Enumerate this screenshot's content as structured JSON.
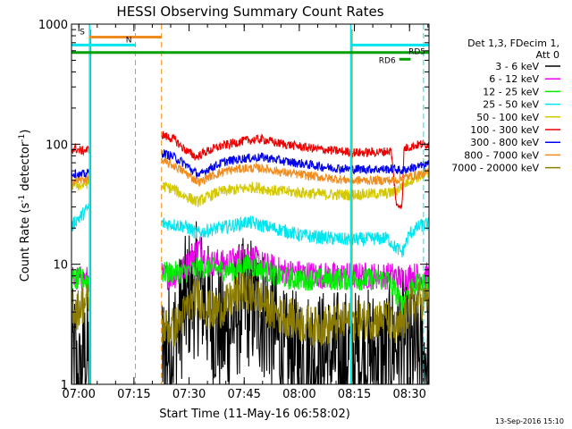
{
  "chart_data": {
    "type": "line",
    "title": "HESSI Observing Summary Count Rates",
    "xlabel": "Start Time (11-May-16 06:58:02)",
    "ylabel": "Count Rate (s⁻¹ detector⁻¹)",
    "ylabel_parts": {
      "base": "Count Rate (s",
      "sup1": "-1",
      "mid": " detector",
      "sup2": "-1",
      "end": ")"
    },
    "x_unit": "minutes since 06:58:02",
    "xlim": [
      0,
      97.3
    ],
    "ylim": [
      1,
      1000
    ],
    "y_scale": "log",
    "grid": false,
    "legend_placement": "right",
    "x_ticks": [
      {
        "label": "07:00",
        "value": 2.0
      },
      {
        "label": "07:15",
        "value": 17.0
      },
      {
        "label": "07:30",
        "value": 32.0
      },
      {
        "label": "07:45",
        "value": 47.0
      },
      {
        "label": "08:00",
        "value": 62.0
      },
      {
        "label": "08:15",
        "value": 77.0
      },
      {
        "label": "08:30",
        "value": 92.0
      }
    ],
    "y_ticks": [
      {
        "label": "1",
        "value": 1
      },
      {
        "label": "10",
        "value": 10
      },
      {
        "label": "100",
        "value": 100
      },
      {
        "label": "1000",
        "value": 1000
      }
    ],
    "legend_header": [
      "Det 1,3, FDecim 1,",
      "Att 0"
    ],
    "timestamp": "13-Sep-2016 15:10",
    "vertical_lines": [
      {
        "x": 17.4,
        "color": "#00e5ee",
        "style": "dashed"
      },
      {
        "x": 24.5,
        "color": "#f08c1e",
        "style": "dashed"
      },
      {
        "x": 95.8,
        "color": "#00e5ee",
        "style": "dashed"
      }
    ],
    "flag_bars": [
      {
        "label": "S",
        "x_start": 4.9,
        "x_end": 24.5,
        "y": 780,
        "color": "#f08c1e",
        "line": "solid",
        "label_pos": "start-above"
      },
      {
        "label": "N",
        "x_start": 0.0,
        "x_end": 17.4,
        "y": 670,
        "color": "#00e5ee",
        "line": "solid",
        "label_pos": "end-above"
      },
      {
        "label": "",
        "x_start": 0.0,
        "x_end": 97.3,
        "y": 580,
        "color": "#00a000",
        "line": "solid",
        "label_pos": "none"
      },
      {
        "label": "RD5",
        "x_start": 76.0,
        "x_end": 97.3,
        "y": 670,
        "color": "#00e5ee",
        "line": "solid",
        "label_pos": "end-below"
      },
      {
        "label": "RD6",
        "x_start": 89.2,
        "x_end": 92.3,
        "y": 510,
        "color": "#00a000",
        "line": "solid",
        "label_pos": "start-left"
      }
    ],
    "saa_intervals": [
      {
        "x_start": 4.9,
        "x_end": 24.5
      },
      {
        "x_start": 76.0,
        "x_end": 76.3
      }
    ],
    "series": [
      {
        "name": "3 - 6 keV",
        "color": "#000000",
        "noise": 0.6,
        "points": [
          [
            0,
            1.7
          ],
          [
            1,
            1.7
          ],
          [
            1.5,
            1.0
          ],
          [
            2.5,
            1.0
          ],
          [
            3.0,
            1.7
          ],
          [
            4.8,
            1.7
          ],
          [
            24.6,
            1.7
          ],
          [
            28,
            2.2
          ],
          [
            30,
            4.0
          ],
          [
            32,
            5.5
          ],
          [
            35,
            6.5
          ],
          [
            38,
            3.5
          ],
          [
            42,
            2.5
          ],
          [
            45,
            4.0
          ],
          [
            48,
            5.0
          ],
          [
            52,
            4.0
          ],
          [
            55,
            3.0
          ],
          [
            58,
            1.6
          ],
          [
            62,
            1.7
          ],
          [
            70,
            1.7
          ],
          [
            76,
            1.7
          ],
          [
            86,
            1.8
          ],
          [
            88,
            2.3
          ],
          [
            91,
            2.3
          ],
          [
            92,
            1.7
          ],
          [
            97.3,
            1.7
          ]
        ]
      },
      {
        "name": "6 - 12 keV",
        "color": "#ee00ee",
        "noise": 0.12,
        "points": [
          [
            0,
            7.5
          ],
          [
            4.8,
            7.5
          ],
          [
            24.6,
            8.0
          ],
          [
            28,
            8.0
          ],
          [
            31,
            9.5
          ],
          [
            33,
            12.0
          ],
          [
            35,
            14.0
          ],
          [
            37,
            10.0
          ],
          [
            40,
            10.5
          ],
          [
            42,
            10.0
          ],
          [
            45,
            11.0
          ],
          [
            48,
            12.0
          ],
          [
            52,
            10.0
          ],
          [
            56,
            9.0
          ],
          [
            60,
            8.5
          ],
          [
            70,
            8.0
          ],
          [
            76,
            8.0
          ],
          [
            86,
            8.0
          ],
          [
            88,
            8.0
          ],
          [
            90,
            7.5
          ],
          [
            92,
            8.0
          ],
          [
            97.3,
            8.0
          ]
        ]
      },
      {
        "name": "12 - 25 keV",
        "color": "#00ee00",
        "noise": 0.1,
        "points": [
          [
            0,
            7.5
          ],
          [
            4.8,
            7.5
          ],
          [
            24.6,
            8.5
          ],
          [
            30,
            8.5
          ],
          [
            33,
            9.0
          ],
          [
            36,
            9.5
          ],
          [
            40,
            9.0
          ],
          [
            45,
            9.0
          ],
          [
            48,
            10.0
          ],
          [
            52,
            9.0
          ],
          [
            56,
            8.0
          ],
          [
            60,
            7.5
          ],
          [
            70,
            7.5
          ],
          [
            76,
            7.5
          ],
          [
            86,
            7.5
          ],
          [
            88,
            6.0
          ],
          [
            90,
            4.5
          ],
          [
            92,
            6.5
          ],
          [
            97.3,
            7.0
          ]
        ]
      },
      {
        "name": "25 - 50 keV",
        "color": "#00e5ee",
        "noise": 0.06,
        "points": [
          [
            0,
            20.0
          ],
          [
            1,
            23.0
          ],
          [
            2.5,
            25.0
          ],
          [
            4.8,
            30.0
          ],
          [
            24.6,
            22.0
          ],
          [
            30,
            21.0
          ],
          [
            32,
            20.0
          ],
          [
            34,
            18.0
          ],
          [
            38,
            19.5
          ],
          [
            44,
            21.0
          ],
          [
            48,
            22.5
          ],
          [
            52,
            21.0
          ],
          [
            58,
            19.0
          ],
          [
            62,
            17.5
          ],
          [
            70,
            16.5
          ],
          [
            76,
            16.0
          ],
          [
            86,
            16.5
          ],
          [
            88,
            14.0
          ],
          [
            90,
            12.5
          ],
          [
            92,
            18.0
          ],
          [
            95,
            21.0
          ],
          [
            97.3,
            21.5
          ]
        ]
      },
      {
        "name": "50 - 100 keV",
        "color": "#d4c800",
        "noise": 0.05,
        "points": [
          [
            0,
            45.0
          ],
          [
            1,
            47.0
          ],
          [
            2.5,
            45.0
          ],
          [
            4.8,
            48.0
          ],
          [
            24.6,
            45.0
          ],
          [
            28,
            42.0
          ],
          [
            30,
            38.0
          ],
          [
            32,
            36.0
          ],
          [
            34,
            33.0
          ],
          [
            36,
            35.0
          ],
          [
            40,
            40.0
          ],
          [
            45,
            42.0
          ],
          [
            50,
            44.0
          ],
          [
            55,
            41.0
          ],
          [
            60,
            40.0
          ],
          [
            70,
            38.0
          ],
          [
            76,
            38.0
          ],
          [
            86,
            39.0
          ],
          [
            88,
            40.0
          ],
          [
            90,
            45.0
          ],
          [
            92,
            50.0
          ],
          [
            95,
            55.0
          ],
          [
            97.3,
            55.0
          ]
        ]
      },
      {
        "name": "100 - 300 keV",
        "color": "#ee0000",
        "noise": 0.04,
        "points": [
          [
            0,
            90.0
          ],
          [
            1,
            92.0
          ],
          [
            2.5,
            88.0
          ],
          [
            4.8,
            90.0
          ],
          [
            24.6,
            120.0
          ],
          [
            26,
            115.0
          ],
          [
            28,
            110.0
          ],
          [
            30,
            95.0
          ],
          [
            32,
            85.0
          ],
          [
            34,
            78.0
          ],
          [
            36,
            85.0
          ],
          [
            40,
            95.0
          ],
          [
            44,
            102.0
          ],
          [
            48,
            108.0
          ],
          [
            52,
            110.0
          ],
          [
            56,
            102.0
          ],
          [
            60,
            98.0
          ],
          [
            66,
            92.0
          ],
          [
            72,
            88.0
          ],
          [
            78,
            85.0
          ],
          [
            84,
            86.0
          ],
          [
            87,
            88.0
          ],
          [
            88.5,
            30.0
          ],
          [
            90,
            32.0
          ],
          [
            90.5,
            92.0
          ],
          [
            92,
            95.0
          ],
          [
            95,
            100.0
          ],
          [
            97.3,
            100.0
          ]
        ]
      },
      {
        "name": "300 - 800 keV",
        "color": "#0000ee",
        "noise": 0.04,
        "points": [
          [
            0,
            58.0
          ],
          [
            2.5,
            55.0
          ],
          [
            4.8,
            58.0
          ],
          [
            24.6,
            85.0
          ],
          [
            28,
            78.0
          ],
          [
            31,
            68.0
          ],
          [
            33,
            60.0
          ],
          [
            35,
            55.0
          ],
          [
            37,
            62.0
          ],
          [
            42,
            72.0
          ],
          [
            47,
            76.0
          ],
          [
            52,
            78.0
          ],
          [
            58,
            72.0
          ],
          [
            64,
            68.0
          ],
          [
            70,
            64.0
          ],
          [
            76,
            62.0
          ],
          [
            84,
            62.0
          ],
          [
            88,
            62.0
          ],
          [
            90,
            60.0
          ],
          [
            92,
            63.0
          ],
          [
            97.3,
            68.0
          ]
        ]
      },
      {
        "name": "800 - 7000 keV",
        "color": "#f08c1e",
        "noise": 0.04,
        "points": [
          [
            0,
            50.0
          ],
          [
            2.5,
            50.0
          ],
          [
            4.8,
            52.0
          ],
          [
            24.6,
            72.0
          ],
          [
            28,
            66.0
          ],
          [
            31,
            58.0
          ],
          [
            33,
            52.0
          ],
          [
            35,
            48.0
          ],
          [
            37,
            53.0
          ],
          [
            42,
            60.0
          ],
          [
            47,
            63.0
          ],
          [
            52,
            63.0
          ],
          [
            58,
            58.0
          ],
          [
            64,
            55.0
          ],
          [
            70,
            52.0
          ],
          [
            76,
            50.0
          ],
          [
            84,
            50.0
          ],
          [
            88,
            50.0
          ],
          [
            90,
            52.0
          ],
          [
            92,
            54.0
          ],
          [
            97.3,
            58.0
          ]
        ]
      },
      {
        "name": "7000 - 20000 keV",
        "color": "#8b7c00",
        "noise": 0.18,
        "points": [
          [
            0,
            5.0
          ],
          [
            1,
            4.0
          ],
          [
            2.5,
            4.5
          ],
          [
            4.8,
            5.0
          ],
          [
            24.6,
            3.0
          ],
          [
            28,
            3.0
          ],
          [
            31,
            4.0
          ],
          [
            34,
            5.5
          ],
          [
            38,
            4.0
          ],
          [
            42,
            4.5
          ],
          [
            46,
            6.0
          ],
          [
            50,
            5.5
          ],
          [
            55,
            4.0
          ],
          [
            60,
            3.5
          ],
          [
            66,
            3.0
          ],
          [
            72,
            3.2
          ],
          [
            80,
            3.5
          ],
          [
            86,
            3.5
          ],
          [
            88,
            2.8
          ],
          [
            90,
            3.0
          ],
          [
            92,
            4.5
          ],
          [
            95,
            5.0
          ],
          [
            97.3,
            5.0
          ]
        ]
      }
    ]
  }
}
